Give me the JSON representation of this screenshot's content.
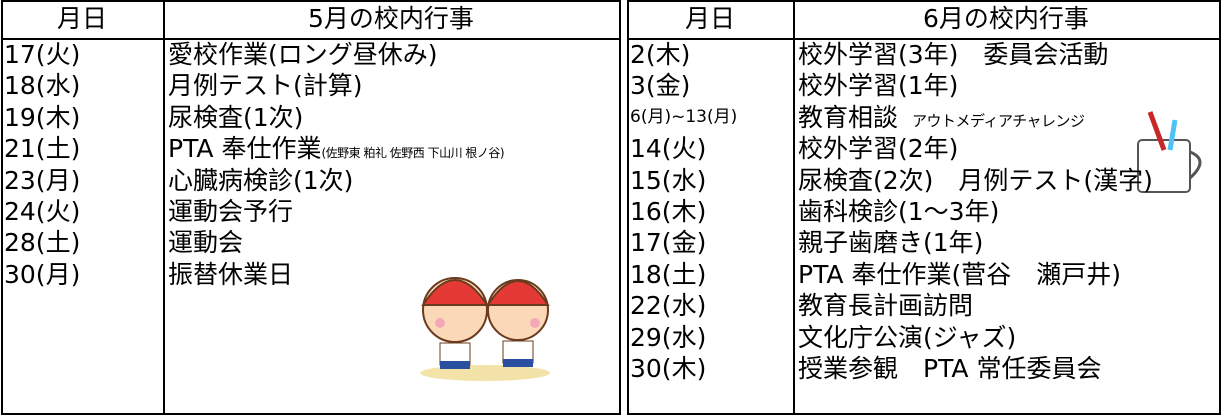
{
  "may": {
    "header": {
      "date": "月日",
      "title": "5月の校内行事"
    },
    "rows": [
      {
        "date": "17(火)",
        "event": "愛校作業(ロング昼休み)"
      },
      {
        "date": "18(水)",
        "event": "月例テスト(計算)"
      },
      {
        "date": "19(木)",
        "event": "尿検査(1次)"
      },
      {
        "date": "21(土)",
        "event": "PTA 奉仕作業",
        "note": "(佐野東 粕礼 佐野西 下山川 根ノ谷)"
      },
      {
        "date": "23(月)",
        "event": "心臓病検診(1次)"
      },
      {
        "date": "24(火)",
        "event": "運動会予行"
      },
      {
        "date": "28(土)",
        "event": "運動会"
      },
      {
        "date": "30(月)",
        "event": "振替休業日"
      }
    ]
  },
  "june": {
    "header": {
      "date": "月日",
      "title": "6月の校内行事"
    },
    "rows": [
      {
        "date": "2(木)",
        "event": "校外学習(3年)　委員会活動"
      },
      {
        "date": "3(金)",
        "event": "校外学習(1年)"
      },
      {
        "date": "6(月)~13(月)",
        "event": "教育相談",
        "note": "アウトメディアチャレンジ"
      },
      {
        "date": "14(火)",
        "event": "校外学習(2年)"
      },
      {
        "date": "15(水)",
        "event": "尿検査(2次)　月例テスト(漢字)"
      },
      {
        "date": "16(木)",
        "event": "歯科検診(1～3年)"
      },
      {
        "date": "17(金)",
        "event": "親子歯磨き(1年)"
      },
      {
        "date": "18(土)",
        "event": "PTA 奉仕作業(菅谷　瀬戸井)"
      },
      {
        "date": "22(水)",
        "event": "教育長計画訪問"
      },
      {
        "date": "29(水)",
        "event": "文化庁公演(ジャズ)"
      },
      {
        "date": "30(木)",
        "event": "授業参観　PTA 常任委員会"
      }
    ]
  }
}
